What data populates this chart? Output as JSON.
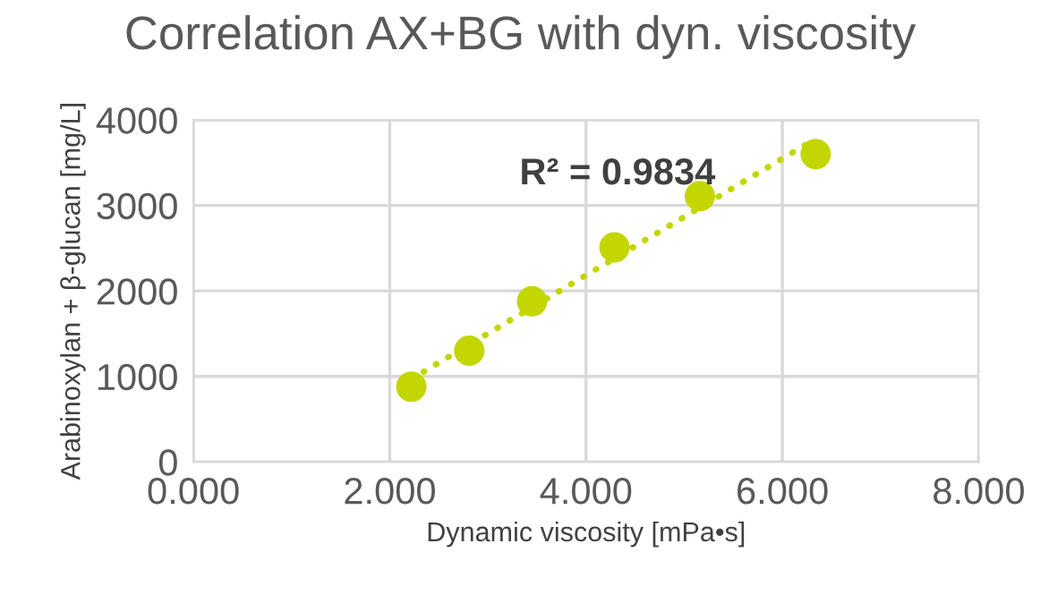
{
  "chart_data": {
    "type": "scatter",
    "title": "Correlation AX+BG with dyn. viscosity",
    "xlabel": "Dynamic viscosity [mPa•s]",
    "ylabel": "Arabinoxylan + β-glucan [mg/L]",
    "annotations": [
      "R² = 0.9834"
    ],
    "series": [
      {
        "color": "#c3d600",
        "x": [
          2.22,
          2.81,
          3.45,
          4.29,
          5.16,
          6.34
        ],
        "values": [
          880,
          1300,
          1880,
          2510,
          3110,
          3600
        ],
        "marker": "circle"
      },
      {
        "type": "line",
        "color": "#c3d600",
        "x": [
          2.22,
          6.34
        ],
        "values": [
          970,
          3780
        ],
        "line_style": "dotted",
        "marker": "none"
      }
    ],
    "xlim": [
      0,
      8
    ],
    "xticks": [
      {
        "value": 0,
        "label": "0.000"
      },
      {
        "value": 2,
        "label": "2.000"
      },
      {
        "value": 4,
        "label": "4.000"
      },
      {
        "value": 6,
        "label": "6.000"
      },
      {
        "value": 8,
        "label": "8.000"
      }
    ],
    "ylim": [
      0,
      4000
    ],
    "yticks": [
      0,
      1000,
      2000,
      3000,
      4000
    ],
    "grid": true,
    "legend": false
  }
}
